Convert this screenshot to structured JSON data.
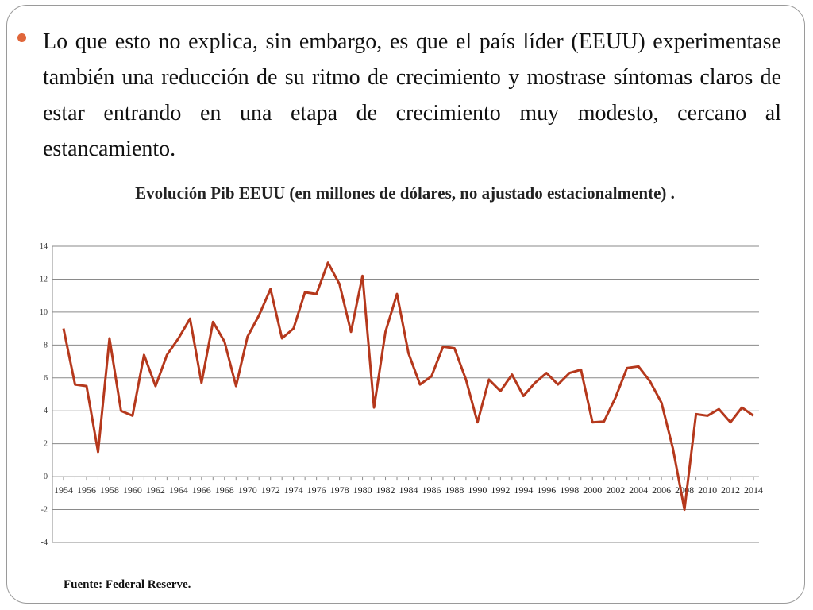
{
  "slide": {
    "bullet_text": "Lo que esto no explica, sin embargo, es que el país líder (EEUU) experimentase también una reducción de su ritmo de crecimiento y mostrase síntomas claros de estar entrando en una etapa de crecimiento muy modesto, cercano al estancamiento.",
    "source": "Fuente: Federal Reserve.",
    "bullet_color": "#e0663a"
  },
  "chart_data": {
    "type": "line",
    "title": "Evolución Pib EEUU (en millones de dólares, no ajustado estacionalmente) .",
    "xlabel": "",
    "ylabel": "",
    "ylim": [
      -4,
      14
    ],
    "yticks": [
      -4,
      -2,
      0,
      2,
      4,
      6,
      8,
      10,
      12,
      14
    ],
    "xticks": [
      "1954",
      "1956",
      "1958",
      "1960",
      "1962",
      "1964",
      "1966",
      "1968",
      "1970",
      "1972",
      "1974",
      "1976",
      "1978",
      "1980",
      "1982",
      "1984",
      "1986",
      "1988",
      "1990",
      "1992",
      "1994",
      "1996",
      "1998",
      "2000",
      "2002",
      "2004",
      "2006",
      "2008",
      "2010",
      "2012",
      "2014"
    ],
    "grid": true,
    "line_color": "#b5381c",
    "series": [
      {
        "x": [
          1954,
          1955,
          1956,
          1957,
          1958,
          1959,
          1960,
          1961,
          1962,
          1963,
          1964,
          1965,
          1966,
          1967,
          1968,
          1969,
          1970,
          1971,
          1972,
          1973,
          1974,
          1975,
          1976,
          1977,
          1978,
          1979,
          1980,
          1981,
          1982,
          1983,
          1984,
          1985,
          1986,
          1987,
          1988,
          1989,
          1990,
          1991,
          1992,
          1993,
          1994,
          1995,
          1996,
          1997,
          1998,
          1999,
          2000,
          2001,
          2002,
          2003,
          2004,
          2005,
          2006,
          2007,
          2008,
          2009,
          2010,
          2011,
          2012,
          2013,
          2014
        ],
        "values": [
          9.0,
          5.6,
          5.5,
          1.5,
          8.4,
          4.0,
          3.7,
          7.4,
          5.5,
          7.4,
          8.4,
          9.6,
          5.7,
          9.4,
          8.2,
          5.5,
          8.5,
          9.8,
          11.4,
          8.4,
          9.0,
          11.2,
          11.1,
          13.0,
          11.7,
          8.8,
          12.2,
          4.2,
          8.8,
          11.1,
          7.5,
          5.6,
          6.1,
          7.9,
          7.8,
          5.9,
          3.3,
          5.9,
          5.2,
          6.2,
          4.9,
          5.7,
          6.3,
          5.6,
          6.3,
          6.5,
          3.3,
          3.35,
          4.8,
          6.6,
          6.7,
          5.8,
          4.5,
          1.7,
          -2.0,
          3.8,
          3.7,
          4.1,
          3.3,
          4.2,
          3.7
        ]
      }
    ]
  }
}
